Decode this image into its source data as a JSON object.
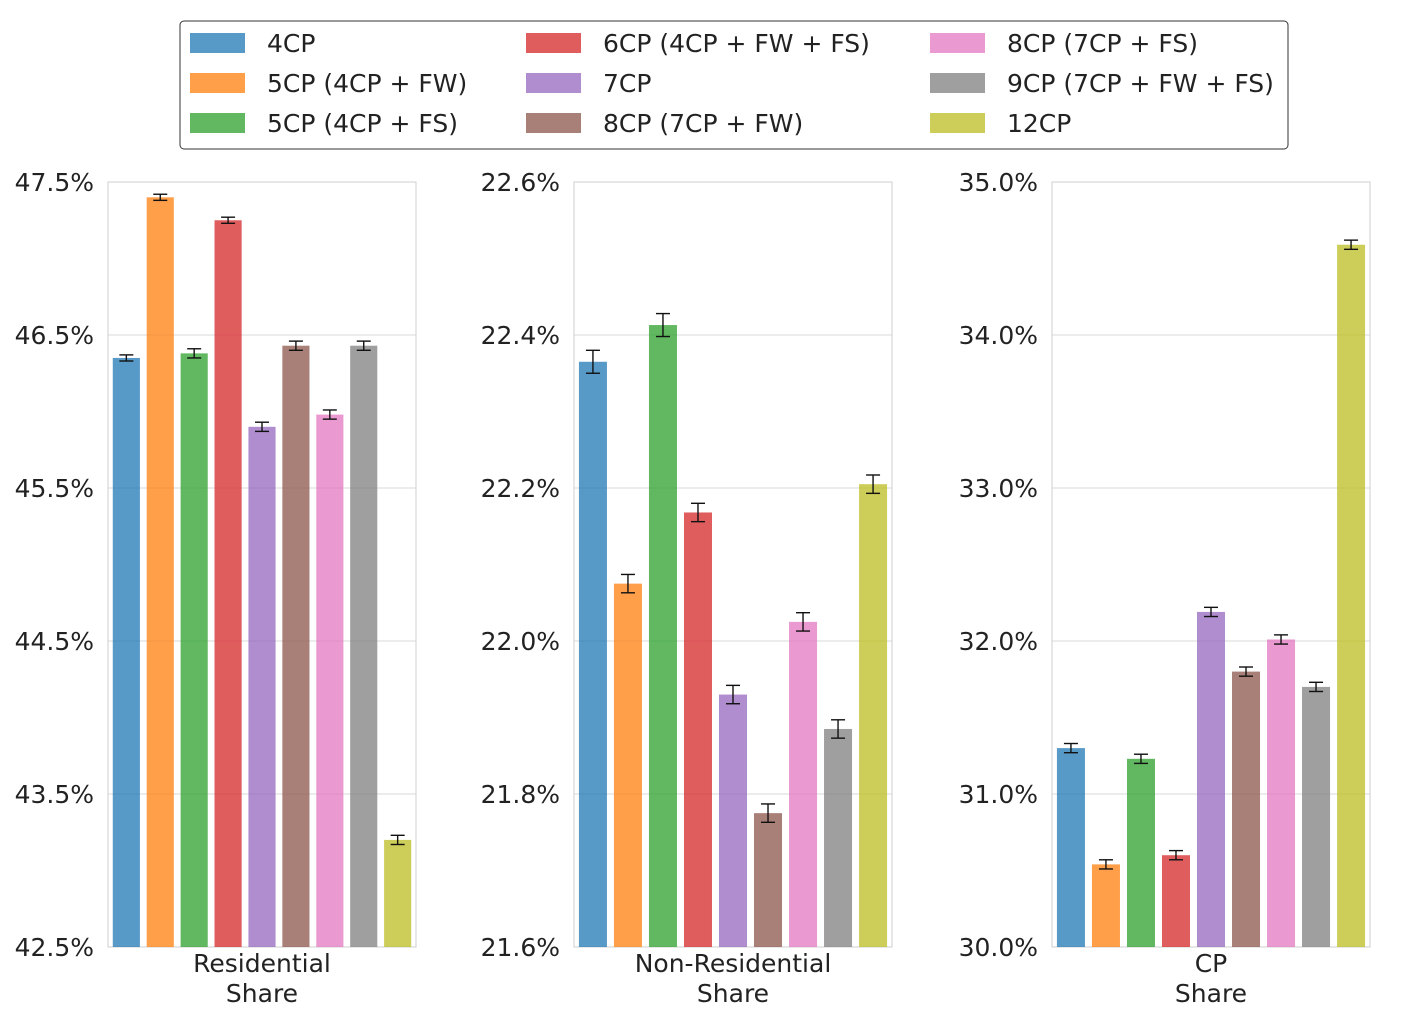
{
  "legend": {
    "entries": [
      {
        "label": "4CP",
        "color": "#1f77b4"
      },
      {
        "label": "5CP (4CP + FW)",
        "color": "#ff7f0e"
      },
      {
        "label": "5CP (4CP + FS)",
        "color": "#2ca02c"
      },
      {
        "label": "6CP (4CP + FW + FS)",
        "color": "#d62728"
      },
      {
        "label": "7CP",
        "color": "#9467bd"
      },
      {
        "label": "8CP (7CP + FW)",
        "color": "#8c564b"
      },
      {
        "label": "8CP (7CP + FS)",
        "color": "#e377c2"
      },
      {
        "label": "9CP (7CP + FW + FS)",
        "color": "#7f7f7f"
      },
      {
        "label": "12CP",
        "color": "#bcbd22"
      }
    ],
    "placement": "top-center",
    "columns": 3
  },
  "chart_data": [
    {
      "type": "bar",
      "category_label": [
        "Residential",
        "Share"
      ],
      "ylim": [
        42.5,
        47.5
      ],
      "yticks": [
        "42.5%",
        "43.5%",
        "44.5%",
        "45.5%",
        "46.5%",
        "47.5%"
      ],
      "ytick_values": [
        42.5,
        43.5,
        44.5,
        45.5,
        46.5,
        47.5
      ],
      "grid": true,
      "values": [
        46.35,
        47.4,
        46.38,
        47.25,
        45.9,
        46.43,
        45.98,
        46.43,
        43.2
      ],
      "errors": [
        0.02,
        0.02,
        0.03,
        0.02,
        0.03,
        0.03,
        0.03,
        0.03,
        0.03
      ]
    },
    {
      "type": "bar",
      "category_label": [
        "Non-Residential",
        "Share"
      ],
      "ylim": [
        21.6,
        22.6
      ],
      "yticks": [
        "21.6%",
        "21.8%",
        "22.0%",
        "22.2%",
        "22.4%",
        "22.6%"
      ],
      "ytick_values": [
        21.6,
        21.8,
        22.0,
        22.2,
        22.4,
        22.6
      ],
      "grid": true,
      "values": [
        22.365,
        22.075,
        22.413,
        22.168,
        21.93,
        21.775,
        22.025,
        21.885,
        22.205
      ],
      "errors": [
        0.015,
        0.012,
        0.015,
        0.012,
        0.012,
        0.012,
        0.012,
        0.012,
        0.012
      ]
    },
    {
      "type": "bar",
      "category_label": [
        "CP",
        "Share"
      ],
      "ylim": [
        30.0,
        35.0
      ],
      "yticks": [
        "30.0%",
        "31.0%",
        "32.0%",
        "33.0%",
        "34.0%",
        "35.0%"
      ],
      "ytick_values": [
        30.0,
        31.0,
        32.0,
        33.0,
        34.0,
        35.0
      ],
      "grid": true,
      "values": [
        31.3,
        30.54,
        31.23,
        30.6,
        32.19,
        31.8,
        32.01,
        31.7,
        34.59
      ],
      "errors": [
        0.03,
        0.03,
        0.03,
        0.03,
        0.03,
        0.03,
        0.03,
        0.03,
        0.03
      ]
    }
  ]
}
